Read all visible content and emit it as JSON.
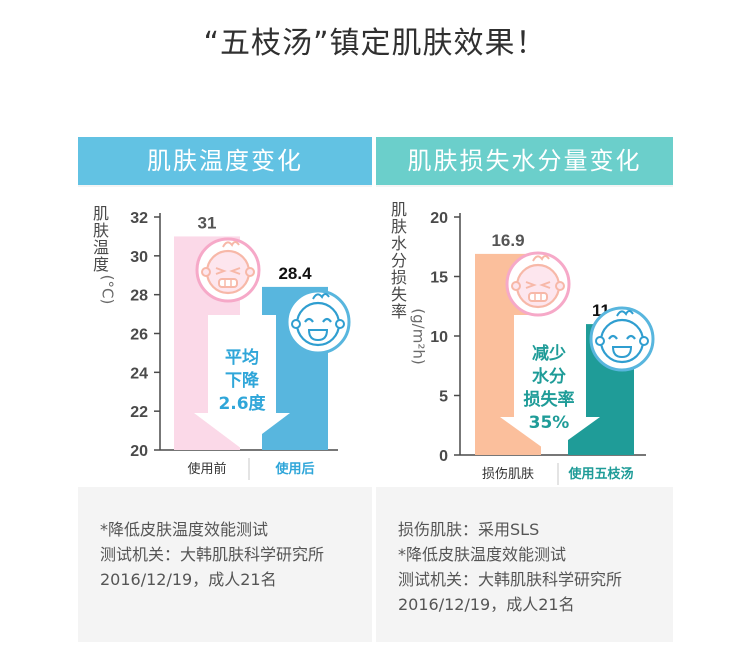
{
  "headline": "“五枝汤”镇定肌肤效果！",
  "colors": {
    "left_header": "#62c2e3",
    "right_header": "#6bcfcb",
    "pink_bar": "#fbd9e8",
    "blue_bar": "#58b6de",
    "peach_bar": "#fbbf9c",
    "teal_bar": "#1f9c98",
    "highlight_blue": "#2fa6d9",
    "highlight_teal": "#1f9c98"
  },
  "left": {
    "header": "肌肤温度变化",
    "ylabel_chars": [
      "肌",
      "肤",
      "温",
      "度"
    ],
    "ylabel_unit": "(°C)",
    "arrow_lines": [
      "平均",
      "下降"
    ],
    "arrow_value": "2.6度",
    "notes": [
      "*降低皮肤温度效能测试",
      "测试机关：大韩肌肤科学研究所",
      "2016/12/19，成人21名"
    ],
    "icons": [
      "crying-baby-icon",
      "smiling-baby-icon"
    ]
  },
  "right": {
    "header": "肌肤损失水分量变化",
    "ylabel_chars": [
      "肌",
      "肤",
      "水",
      "分",
      "损",
      "失",
      "率"
    ],
    "ylabel_unit": "(g/m²h)",
    "arrow_lines": [
      "减少",
      "水分",
      "损失率"
    ],
    "arrow_value": "35%",
    "notes": [
      "损伤肌肤：采用SLS",
      "*降低皮肤温度效能测试",
      "测试机关：大韩肌肤科学研究所",
      "2016/12/19，成人21名"
    ],
    "icons": [
      "crying-baby-icon",
      "smiling-baby-icon"
    ]
  },
  "chart_data": [
    {
      "type": "bar",
      "title": "肌肤温度变化",
      "ylabel": "肌肤温度(°C)",
      "categories": [
        "使用前",
        "使用后"
      ],
      "values": [
        31,
        28.4
      ],
      "value_labels": [
        "31",
        "28.4"
      ],
      "ylim": [
        20,
        32
      ],
      "yticks": [
        20,
        22,
        24,
        26,
        28,
        30,
        32
      ],
      "grid": false
    },
    {
      "type": "bar",
      "title": "肌肤损失水分量变化",
      "ylabel": "肌肤水分损失率(g/m²h)",
      "categories": [
        "损伤肌肤",
        "使用五枝汤"
      ],
      "values": [
        16.9,
        11
      ],
      "value_labels": [
        "16.9",
        "11"
      ],
      "ylim": [
        0,
        20
      ],
      "yticks": [
        0,
        5,
        10,
        15,
        20
      ],
      "grid": false
    }
  ]
}
